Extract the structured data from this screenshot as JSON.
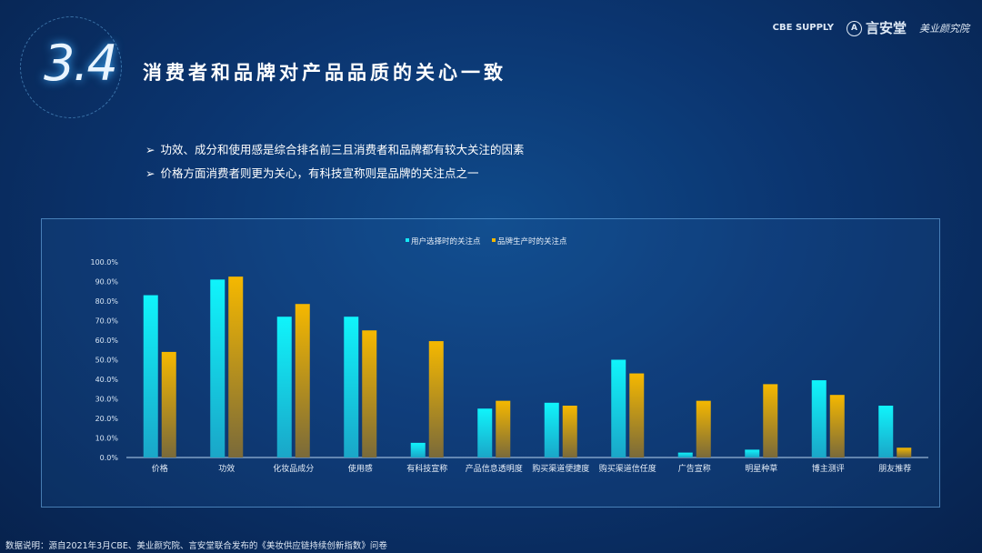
{
  "header": {
    "section_number": "3.4",
    "title": "消费者和品牌对产品品质的关心一致",
    "logos": [
      "CBE SUPPLY",
      "言安堂",
      "美业颜究院"
    ]
  },
  "bullets": [
    "功效、成分和使用感是综合排名前三且消费者和品牌都有较大关注的因素",
    "价格方面消费者则更为关心，有科技宣称则是品牌的关注点之一"
  ],
  "bullet_marker": "➢",
  "footer": "数据说明：源自2021年3月CBE、美业颜究院、言安堂联合发布的《美妆供应链持续创新指数》问卷",
  "chart_data": {
    "type": "bar",
    "categories": [
      "价格",
      "功效",
      "化妆品成分",
      "使用感",
      "有科技宣称",
      "产品信息透明度",
      "购买渠道便捷度",
      "购买渠道信任度",
      "广告宣称",
      "明星种草",
      "博主测评",
      "朋友推荐"
    ],
    "series": [
      {
        "name": "用户选择时的关注点",
        "color": "#14e8f5",
        "values": [
          83,
          91,
          72,
          72,
          7.5,
          25,
          28,
          50,
          2.5,
          4,
          39.5,
          26.5
        ]
      },
      {
        "name": "品牌生产时的关注点",
        "color": "#f2b800",
        "values": [
          54,
          92.5,
          78.5,
          65,
          59.5,
          29,
          26.5,
          43,
          29,
          37.5,
          32,
          5
        ]
      }
    ],
    "ylim": [
      0,
      100
    ],
    "yticks": [
      "0.0%",
      "10.0%",
      "20.0%",
      "30.0%",
      "40.0%",
      "50.0%",
      "60.0%",
      "70.0%",
      "80.0%",
      "90.0%",
      "100.0%"
    ],
    "legend": "top-center",
    "grid": false
  }
}
